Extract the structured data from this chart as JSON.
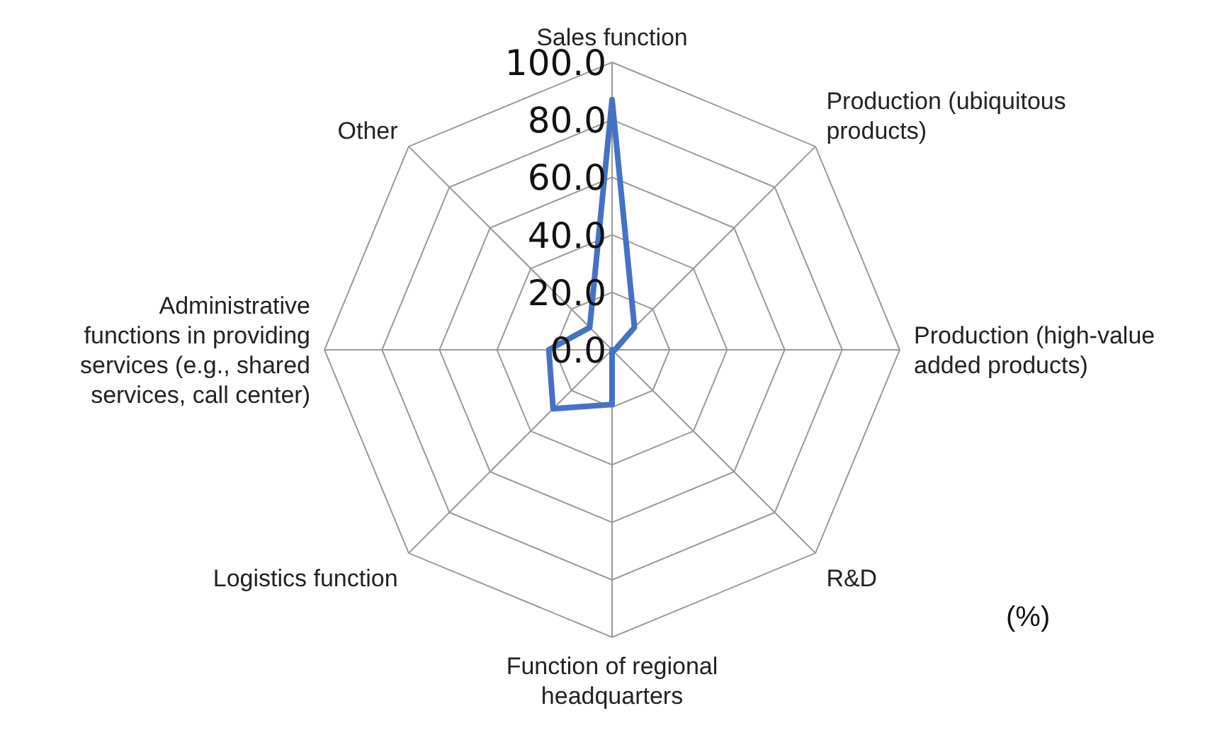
{
  "chart_data": {
    "type": "radar",
    "categories": [
      "Sales function",
      "Production (ubiquitous products)",
      "Production (high-value added products)",
      "R&D",
      "Function of regional headquarters",
      "Logistics function",
      "Administrative functions in providing services (e.g., shared services, call center)",
      "Other"
    ],
    "series": [
      {
        "color": "#4472c4",
        "values": [
          87,
          11,
          1,
          0,
          19,
          29,
          22,
          11
        ]
      }
    ],
    "ylim": [
      0,
      100
    ],
    "yticks": [
      {
        "value": 0,
        "label": "0.0"
      },
      {
        "value": 20,
        "label": "20.0"
      },
      {
        "value": 40,
        "label": "40.0"
      },
      {
        "value": 60,
        "label": "60.0"
      },
      {
        "value": 80,
        "label": "80.0"
      },
      {
        "value": 100,
        "label": "100.0"
      }
    ],
    "grid": true,
    "marker": "none",
    "legend": false,
    "annotations": [
      "(%)"
    ]
  }
}
